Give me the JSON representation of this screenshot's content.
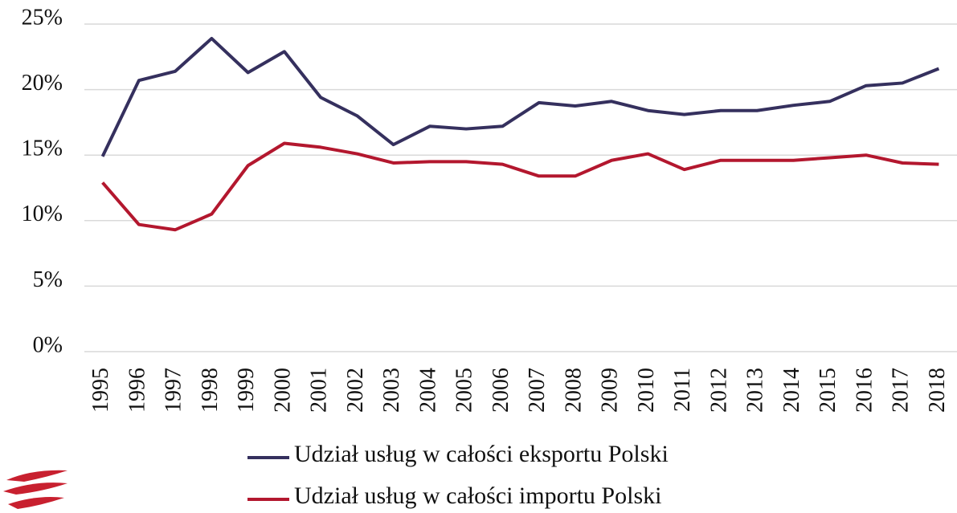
{
  "chart_data": {
    "type": "line",
    "categories": [
      "1995",
      "1996",
      "1997",
      "1998",
      "1999",
      "2000",
      "2001",
      "2002",
      "2003",
      "2004",
      "2005",
      "2006",
      "2007",
      "2008",
      "2009",
      "2010",
      "2011",
      "2012",
      "2013",
      "2014",
      "2015",
      "2016",
      "2017",
      "2018"
    ],
    "series": [
      {
        "name": "Udział usług w całości eksportu Polski",
        "color": "#35305e",
        "values": [
          14.9,
          20.7,
          21.4,
          23.9,
          21.3,
          22.9,
          19.4,
          18.0,
          15.8,
          17.2,
          17.0,
          17.2,
          19.0,
          18.75,
          19.1,
          18.4,
          18.1,
          18.4,
          18.4,
          18.8,
          19.1,
          20.3,
          20.5,
          21.6
        ]
      },
      {
        "name": "Udział usług w całości importu Polski",
        "color": "#b3172e",
        "values": [
          12.9,
          9.7,
          9.3,
          10.5,
          14.2,
          15.9,
          15.6,
          15.1,
          14.4,
          14.5,
          14.5,
          14.3,
          13.4,
          13.4,
          14.6,
          15.1,
          13.9,
          14.6,
          14.6,
          14.6,
          14.8,
          15.0,
          14.4,
          14.3
        ]
      }
    ],
    "ylim": [
      0,
      25
    ],
    "yticks": [
      {
        "value": 0,
        "label": "0%"
      },
      {
        "value": 5,
        "label": "5%"
      },
      {
        "value": 10,
        "label": "10%"
      },
      {
        "value": 15,
        "label": "15%"
      },
      {
        "value": 20,
        "label": "20%"
      },
      {
        "value": 25,
        "label": "25%"
      }
    ],
    "grid": true
  }
}
